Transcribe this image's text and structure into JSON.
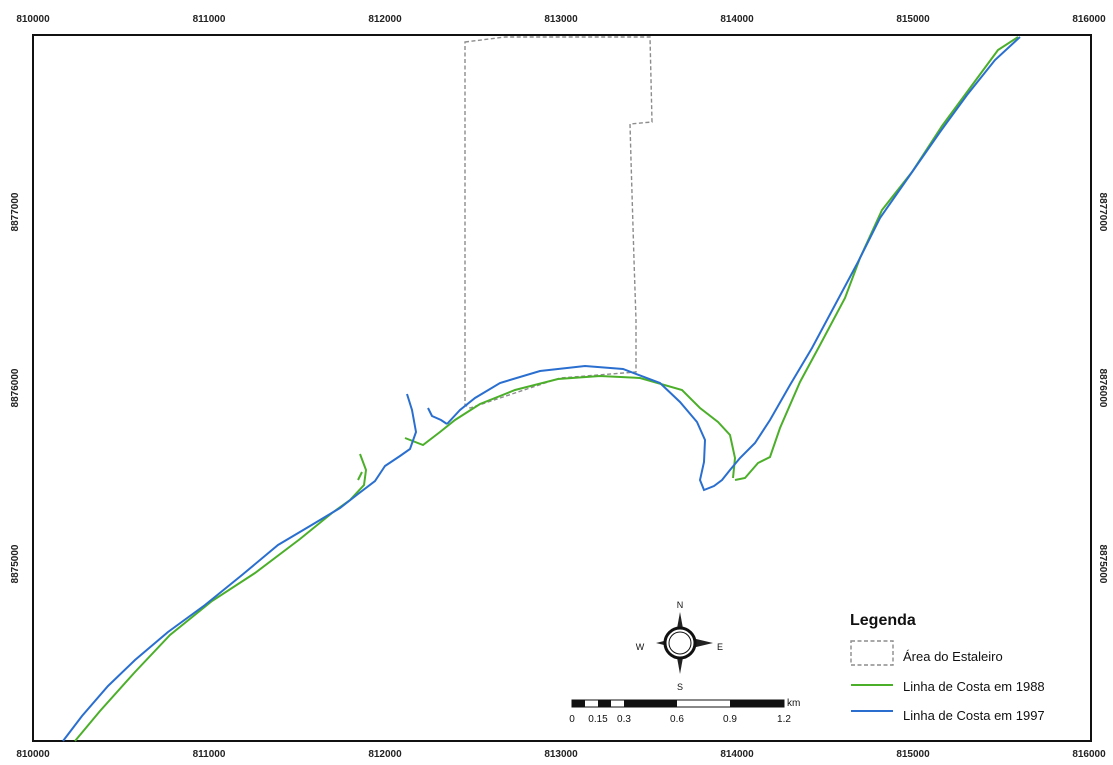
{
  "map": {
    "x_ticks": [
      "810000",
      "811000",
      "812000",
      "813000",
      "814000",
      "815000",
      "816000"
    ],
    "y_ticks": [
      "8877000",
      "8876000",
      "8875000"
    ],
    "shipyard_color": "#8c8c8c",
    "coast_1988_color": "#4caf2a",
    "coast_1997_color": "#2a6fcf"
  },
  "legend": {
    "title": "Legenda",
    "items": [
      {
        "label": "Área do Estaleiro",
        "symbol": "dashed-box"
      },
      {
        "label": "Linha de Costa em 1988",
        "symbol": "green-line"
      },
      {
        "label": "Linha de Costa em 1997",
        "symbol": "blue-line"
      }
    ]
  },
  "compass": {
    "n": "N",
    "s": "S",
    "e": "E",
    "w": "W",
    "icon": "compass-rose-icon"
  },
  "scale_bar": {
    "unit": "km",
    "labels": [
      "0",
      "0.15",
      "0.3",
      "0.6",
      "0.9",
      "1.2"
    ]
  }
}
